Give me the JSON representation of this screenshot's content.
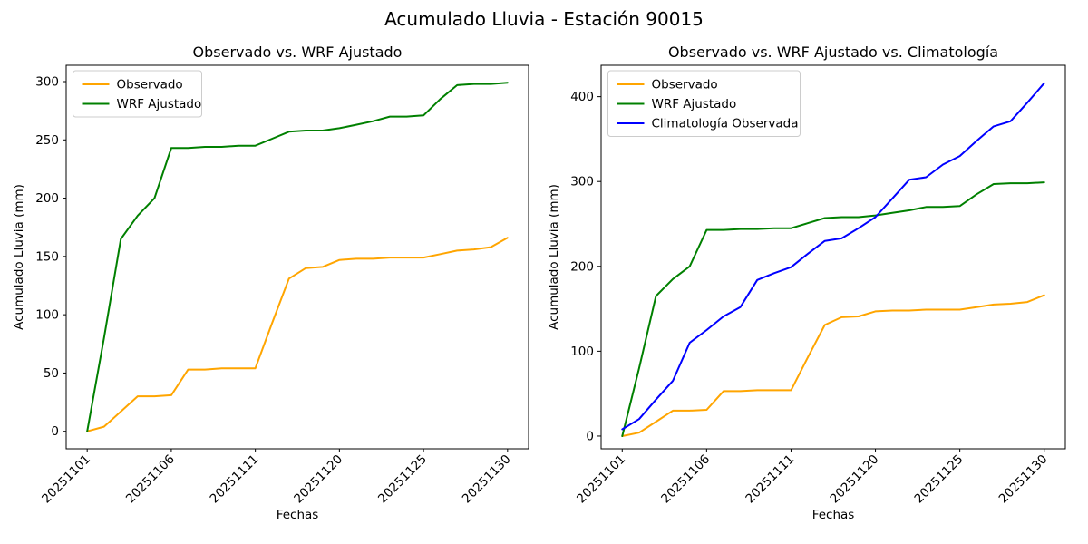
{
  "figure": {
    "suptitle": "Acumulado Lluvia - Estación 90015",
    "background": "#ffffff"
  },
  "chart_data": [
    {
      "type": "line",
      "title": "Observado vs. WRF Ajustado",
      "xlabel": "Fechas",
      "ylabel": "Acumulado Lluvia (mm)",
      "x": [
        "20251101",
        "20251102",
        "20251103",
        "20251104",
        "20251105",
        "20251106",
        "20251107",
        "20251108",
        "20251109",
        "20251110",
        "20251111",
        "20251116",
        "20251117",
        "20251118",
        "20251119",
        "20251120",
        "20251121",
        "20251122",
        "20251123",
        "20251124",
        "20251125",
        "20251126",
        "20251127",
        "20251128",
        "20251129",
        "20251130"
      ],
      "xtick_indices": [
        0,
        5,
        10,
        15,
        20,
        25
      ],
      "xtick_labels": [
        "20251101",
        "20251106",
        "20251111",
        "20251120",
        "20251125",
        "20251130"
      ],
      "yticks": [
        0,
        50,
        100,
        150,
        200,
        250,
        300
      ],
      "ylim": [
        -15,
        314
      ],
      "grid": false,
      "legend_position": "upper-left",
      "series": [
        {
          "name": "Observado",
          "color": "#FFA500",
          "values": [
            0,
            4,
            17,
            30,
            30,
            31,
            53,
            53,
            54,
            54,
            54,
            93,
            131,
            140,
            141,
            147,
            148,
            148,
            149,
            149,
            149,
            152,
            155,
            156,
            158,
            166
          ]
        },
        {
          "name": "WRF Ajustado",
          "color": "#008000",
          "values": [
            0,
            80,
            165,
            185,
            200,
            243,
            243,
            244,
            244,
            245,
            245,
            251,
            257,
            258,
            258,
            260,
            263,
            266,
            270,
            270,
            271,
            285,
            297,
            298,
            298,
            299
          ]
        }
      ]
    },
    {
      "type": "line",
      "title": "Observado vs. WRF Ajustado vs. Climatología",
      "xlabel": "Fechas",
      "ylabel": "Acumulado Lluvia (mm)",
      "x": [
        "20251101",
        "20251102",
        "20251103",
        "20251104",
        "20251105",
        "20251106",
        "20251107",
        "20251108",
        "20251109",
        "20251110",
        "20251111",
        "20251116",
        "20251117",
        "20251118",
        "20251119",
        "20251120",
        "20251121",
        "20251122",
        "20251123",
        "20251124",
        "20251125",
        "20251126",
        "20251127",
        "20251128",
        "20251129",
        "20251130"
      ],
      "xtick_indices": [
        0,
        5,
        10,
        15,
        20,
        25
      ],
      "xtick_labels": [
        "20251101",
        "20251106",
        "20251111",
        "20251120",
        "20251125",
        "20251130"
      ],
      "yticks": [
        0,
        100,
        200,
        300,
        400
      ],
      "ylim": [
        -15,
        437
      ],
      "grid": false,
      "legend_position": "upper-left",
      "series": [
        {
          "name": "Observado",
          "color": "#FFA500",
          "values": [
            0,
            4,
            17,
            30,
            30,
            31,
            53,
            53,
            54,
            54,
            54,
            93,
            131,
            140,
            141,
            147,
            148,
            148,
            149,
            149,
            149,
            152,
            155,
            156,
            158,
            166
          ]
        },
        {
          "name": "WRF Ajustado",
          "color": "#008000",
          "values": [
            0,
            80,
            165,
            185,
            200,
            243,
            243,
            244,
            244,
            245,
            245,
            251,
            257,
            258,
            258,
            260,
            263,
            266,
            270,
            270,
            271,
            285,
            297,
            298,
            298,
            299
          ]
        },
        {
          "name": "Climatología Observada",
          "color": "#0000FF",
          "values": [
            8,
            20,
            43,
            65,
            110,
            125,
            141,
            152,
            184,
            192,
            199,
            215,
            230,
            233,
            245,
            258,
            280,
            302,
            305,
            320,
            330,
            348,
            365,
            371,
            393,
            416
          ]
        }
      ]
    }
  ]
}
